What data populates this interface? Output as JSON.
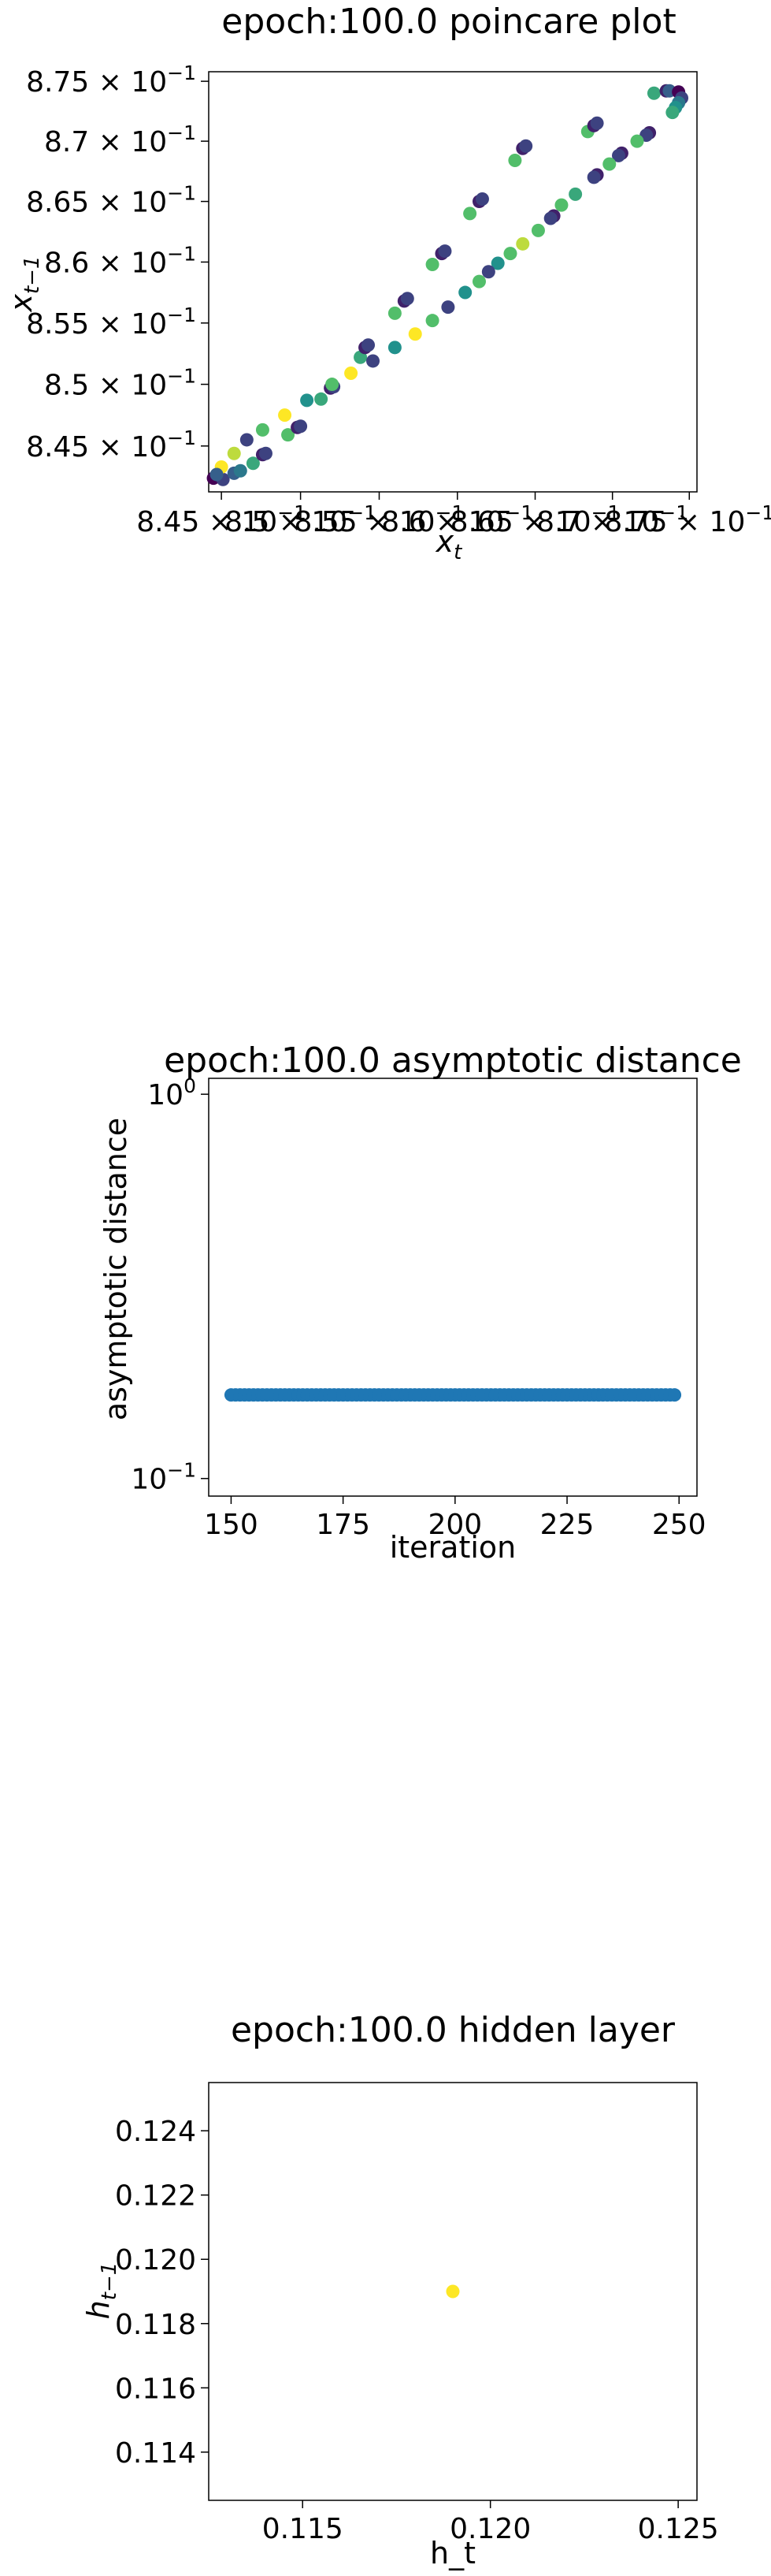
{
  "chart_data": [
    {
      "type": "scatter",
      "title": "epoch:100.0 poincare plot",
      "xlabel_main": "x",
      "xlabel_sub": "t",
      "ylabel_main": "x",
      "ylabel_sub": "t−1",
      "xscale": "log",
      "yscale": "log",
      "xlim": [
        0.8442,
        0.8755
      ],
      "ylim": [
        0.8413,
        0.8758
      ],
      "x_ticks": [
        {
          "value": 0.845,
          "mant": "8.45",
          "base": "× 10",
          "exp": "−1"
        },
        {
          "value": 0.85,
          "mant": "8.5",
          "base": "× 10",
          "exp": "−1"
        },
        {
          "value": 0.855,
          "mant": "8.55",
          "base": "× 10",
          "exp": "−1"
        },
        {
          "value": 0.86,
          "mant": "8.6",
          "base": "× 10",
          "exp": "−1"
        },
        {
          "value": 0.865,
          "mant": "8.65",
          "base": "× 10",
          "exp": "−1"
        },
        {
          "value": 0.87,
          "mant": "8.7",
          "base": "× 10",
          "exp": "−1"
        },
        {
          "value": 0.875,
          "mant": "8.75",
          "base": "× 10",
          "exp": "−1"
        }
      ],
      "y_ticks": [
        {
          "value": 0.845,
          "mant": "8.45",
          "base": "× 10",
          "exp": "−1"
        },
        {
          "value": 0.85,
          "mant": "8.5",
          "base": "× 10",
          "exp": "−1"
        },
        {
          "value": 0.855,
          "mant": "8.55",
          "base": "× 10",
          "exp": "−1"
        },
        {
          "value": 0.86,
          "mant": "8.6",
          "base": "× 10",
          "exp": "−1"
        },
        {
          "value": 0.865,
          "mant": "8.65",
          "base": "× 10",
          "exp": "−1"
        },
        {
          "value": 0.87,
          "mant": "8.7",
          "base": "× 10",
          "exp": "−1"
        },
        {
          "value": 0.875,
          "mant": "8.75",
          "base": "× 10",
          "exp": "−1"
        }
      ],
      "colormap": "viridis",
      "colormap_stops": [
        "#440154",
        "#3b528b",
        "#21918c",
        "#5ec962",
        "#fde725"
      ],
      "points": [
        {
          "x": 0.8445,
          "y": 0.8424,
          "c": 0.0
        },
        {
          "x": 0.8451,
          "y": 0.8423,
          "c": 0.2
        },
        {
          "x": 0.8458,
          "y": 0.8428,
          "c": 0.3
        },
        {
          "x": 0.8462,
          "y": 0.843,
          "c": 0.4
        },
        {
          "x": 0.847,
          "y": 0.8436,
          "c": 0.6
        },
        {
          "x": 0.8476,
          "y": 0.8443,
          "c": 0.1
        },
        {
          "x": 0.8478,
          "y": 0.8444,
          "c": 0.2
        },
        {
          "x": 0.8492,
          "y": 0.8459,
          "c": 0.7
        },
        {
          "x": 0.8498,
          "y": 0.8465,
          "c": 0.1
        },
        {
          "x": 0.85,
          "y": 0.8466,
          "c": 0.2
        },
        {
          "x": 0.8513,
          "y": 0.8488,
          "c": 0.6
        },
        {
          "x": 0.8519,
          "y": 0.8497,
          "c": 0.1
        },
        {
          "x": 0.8521,
          "y": 0.8498,
          "c": 0.2
        },
        {
          "x": 0.8538,
          "y": 0.8522,
          "c": 0.6
        },
        {
          "x": 0.8541,
          "y": 0.853,
          "c": 0.1
        },
        {
          "x": 0.8543,
          "y": 0.8532,
          "c": 0.2
        },
        {
          "x": 0.856,
          "y": 0.8558,
          "c": 0.7
        },
        {
          "x": 0.8566,
          "y": 0.8568,
          "c": 0.1
        },
        {
          "x": 0.8568,
          "y": 0.857,
          "c": 0.2
        },
        {
          "x": 0.8584,
          "y": 0.8598,
          "c": 0.7
        },
        {
          "x": 0.859,
          "y": 0.8607,
          "c": 0.1
        },
        {
          "x": 0.8592,
          "y": 0.8609,
          "c": 0.2
        },
        {
          "x": 0.8608,
          "y": 0.864,
          "c": 0.7
        },
        {
          "x": 0.8614,
          "y": 0.865,
          "c": 0.1
        },
        {
          "x": 0.8616,
          "y": 0.8652,
          "c": 0.2
        },
        {
          "x": 0.8637,
          "y": 0.8684,
          "c": 0.7
        },
        {
          "x": 0.8642,
          "y": 0.8694,
          "c": 0.1
        },
        {
          "x": 0.8644,
          "y": 0.8696,
          "c": 0.2
        },
        {
          "x": 0.8684,
          "y": 0.8708,
          "c": 0.7
        },
        {
          "x": 0.8688,
          "y": 0.8713,
          "c": 0.1
        },
        {
          "x": 0.869,
          "y": 0.8715,
          "c": 0.2
        },
        {
          "x": 0.8727,
          "y": 0.874,
          "c": 0.6
        },
        {
          "x": 0.8735,
          "y": 0.8742,
          "c": 0.1
        },
        {
          "x": 0.8737,
          "y": 0.8742,
          "c": 0.3
        },
        {
          "x": 0.8743,
          "y": 0.8741,
          "c": 0.0
        },
        {
          "x": 0.8745,
          "y": 0.8736,
          "c": 0.2
        },
        {
          "x": 0.8743,
          "y": 0.8732,
          "c": 0.4
        },
        {
          "x": 0.8741,
          "y": 0.8728,
          "c": 0.5
        },
        {
          "x": 0.8739,
          "y": 0.8724,
          "c": 0.6
        },
        {
          "x": 0.8724,
          "y": 0.8707,
          "c": 0.1
        },
        {
          "x": 0.8722,
          "y": 0.8705,
          "c": 0.2
        },
        {
          "x": 0.8716,
          "y": 0.87,
          "c": 0.7
        },
        {
          "x": 0.8706,
          "y": 0.869,
          "c": 0.1
        },
        {
          "x": 0.8704,
          "y": 0.8688,
          "c": 0.2
        },
        {
          "x": 0.8698,
          "y": 0.8681,
          "c": 0.7
        },
        {
          "x": 0.869,
          "y": 0.8672,
          "c": 0.1
        },
        {
          "x": 0.8688,
          "y": 0.867,
          "c": 0.2
        },
        {
          "x": 0.8676,
          "y": 0.8656,
          "c": 0.6
        },
        {
          "x": 0.8667,
          "y": 0.8647,
          "c": 0.7
        },
        {
          "x": 0.8662,
          "y": 0.8638,
          "c": 0.1
        },
        {
          "x": 0.866,
          "y": 0.8636,
          "c": 0.2
        },
        {
          "x": 0.8652,
          "y": 0.8626,
          "c": 0.7
        },
        {
          "x": 0.8642,
          "y": 0.8615,
          "c": 0.9
        },
        {
          "x": 0.8634,
          "y": 0.8607,
          "c": 0.7
        },
        {
          "x": 0.8626,
          "y": 0.8599,
          "c": 0.5
        },
        {
          "x": 0.862,
          "y": 0.8592,
          "c": 0.2
        },
        {
          "x": 0.8614,
          "y": 0.8584,
          "c": 0.7
        },
        {
          "x": 0.8605,
          "y": 0.8575,
          "c": 0.5
        },
        {
          "x": 0.8594,
          "y": 0.8563,
          "c": 0.2
        },
        {
          "x": 0.8584,
          "y": 0.8552,
          "c": 0.7
        },
        {
          "x": 0.8573,
          "y": 0.8541,
          "c": 1.0
        },
        {
          "x": 0.856,
          "y": 0.853,
          "c": 0.5
        },
        {
          "x": 0.8546,
          "y": 0.8519,
          "c": 0.2
        },
        {
          "x": 0.8532,
          "y": 0.8509,
          "c": 1.0
        },
        {
          "x": 0.852,
          "y": 0.85,
          "c": 0.7
        },
        {
          "x": 0.8504,
          "y": 0.8487,
          "c": 0.5
        },
        {
          "x": 0.849,
          "y": 0.8475,
          "c": 1.0
        },
        {
          "x": 0.8476,
          "y": 0.8463,
          "c": 0.7
        },
        {
          "x": 0.8466,
          "y": 0.8455,
          "c": 0.2
        },
        {
          "x": 0.8458,
          "y": 0.8444,
          "c": 0.9
        },
        {
          "x": 0.845,
          "y": 0.8433,
          "c": 1.0
        },
        {
          "x": 0.8447,
          "y": 0.8427,
          "c": 0.3
        }
      ]
    },
    {
      "type": "scatter",
      "title": "epoch:100.0 asymptotic distance",
      "xlabel": "iteration",
      "ylabel": "asymptotic distance",
      "xlim": [
        145,
        254
      ],
      "ylim": [
        0.09,
        1.1
      ],
      "yscale": "log",
      "x_ticks": [
        150,
        175,
        200,
        225,
        250
      ],
      "x_tick_labels": [
        "150",
        "175",
        "200",
        "225",
        "250"
      ],
      "y_ticks": [
        {
          "value": 1.0,
          "base": "10",
          "exp": "0"
        },
        {
          "value": 0.1,
          "base": "10",
          "exp": "−1"
        }
      ],
      "color": "#1f77b4",
      "x_start": 150,
      "x_end": 249,
      "y_value": 0.165
    },
    {
      "type": "scatter",
      "title": "epoch:100.0 hidden layer",
      "xlabel": "h_t",
      "ylabel_main": "h",
      "ylabel_sub": "t−1",
      "xlim": [
        0.1125,
        0.1255
      ],
      "ylim": [
        0.1125,
        0.1255
      ],
      "x_ticks": [
        0.115,
        0.12,
        0.125
      ],
      "x_tick_labels": [
        "0.115",
        "0.120",
        "0.125"
      ],
      "y_ticks": [
        0.114,
        0.116,
        0.118,
        0.12,
        0.122,
        0.124
      ],
      "y_tick_labels": [
        "0.114",
        "0.116",
        "0.118",
        "0.120",
        "0.122",
        "0.124"
      ],
      "points": [
        {
          "x": 0.119,
          "y": 0.119
        }
      ],
      "color": "#fde725"
    }
  ]
}
